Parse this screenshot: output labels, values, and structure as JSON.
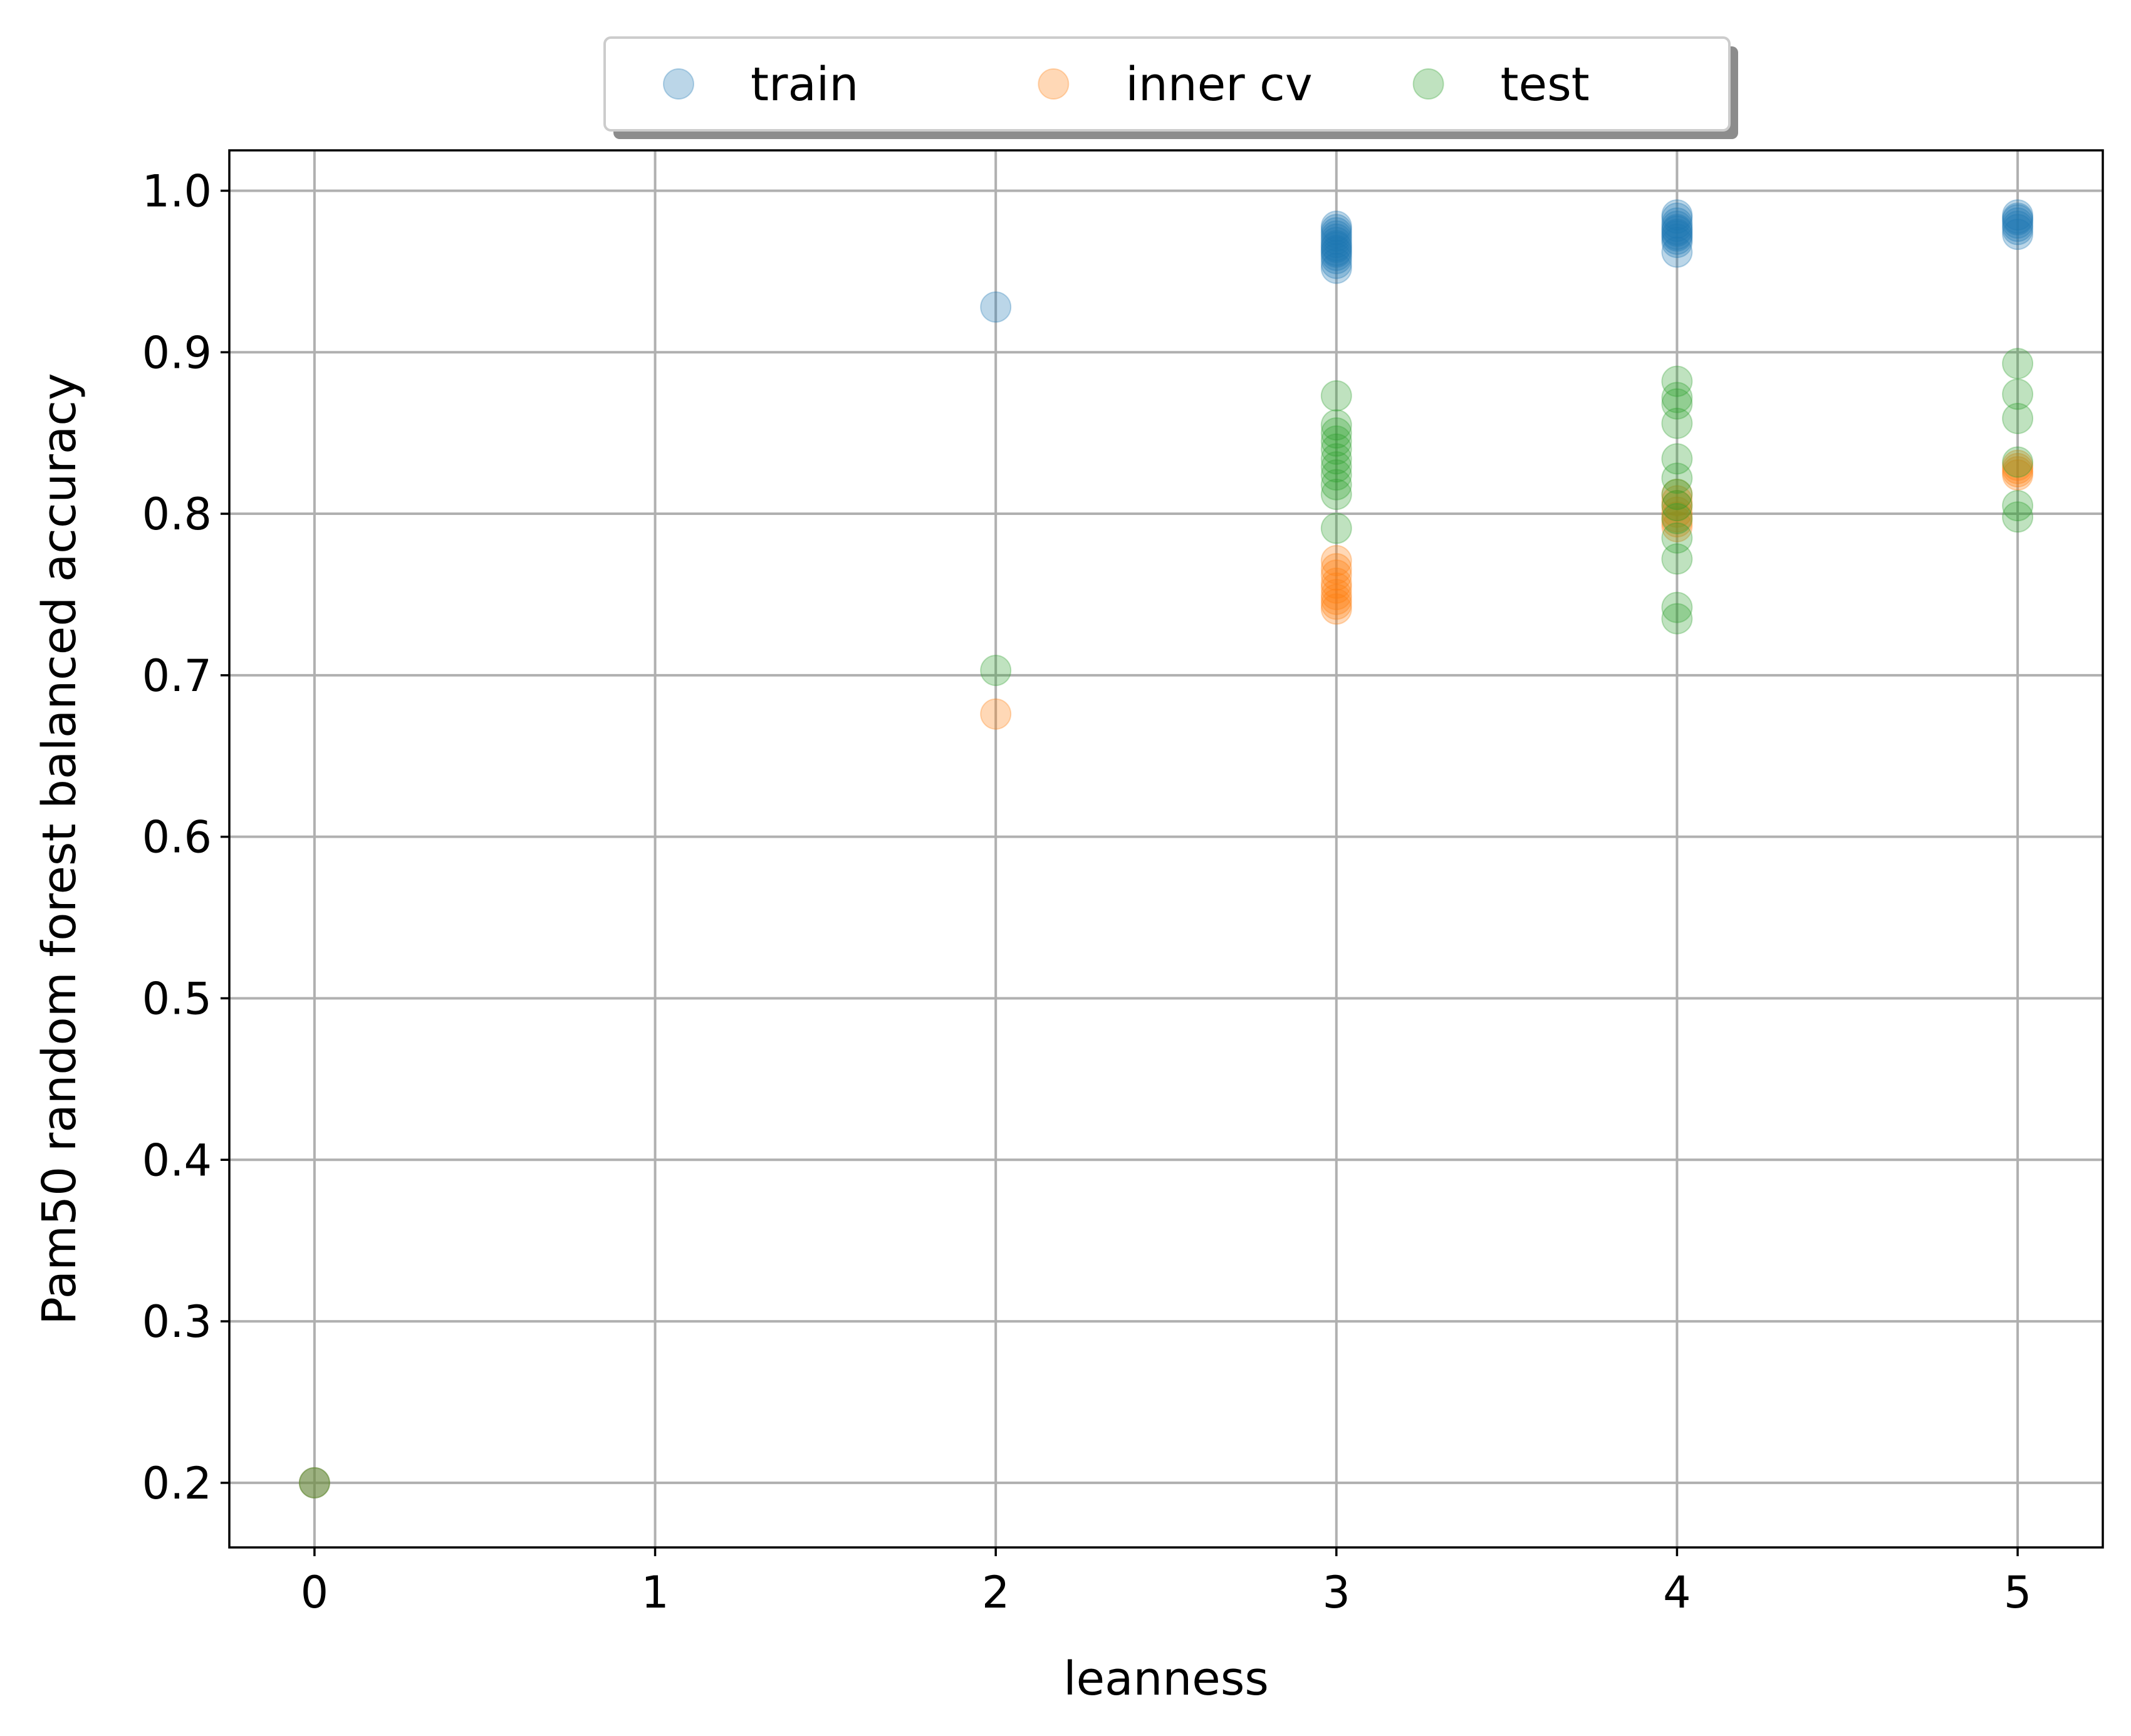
{
  "chart_data": {
    "type": "scatter",
    "title": "",
    "xlabel": "leanness",
    "ylabel": "Pam50 random forest balanced accuracy",
    "xlim": [
      -0.25,
      5.25
    ],
    "ylim": [
      0.16,
      1.025
    ],
    "xticks": [
      0,
      1,
      2,
      3,
      4,
      5
    ],
    "yticks": [
      0.2,
      0.3,
      0.4,
      0.5,
      0.6,
      0.7,
      0.8,
      0.9,
      1.0
    ],
    "xtick_labels": [
      "0",
      "1",
      "2",
      "3",
      "4",
      "5"
    ],
    "ytick_labels": [
      "0.2",
      "0.3",
      "0.4",
      "0.5",
      "0.6",
      "0.7",
      "0.8",
      "0.9",
      "1.0"
    ],
    "grid": true,
    "legend": {
      "position": "top-center",
      "columns": 3,
      "shadow": true
    },
    "marker_alpha": 0.3,
    "series": [
      {
        "name": "train",
        "color": "#1f77b4",
        "points": [
          [
            0,
            0.2
          ],
          [
            2,
            0.928
          ],
          [
            3,
            0.952
          ],
          [
            3,
            0.955
          ],
          [
            3,
            0.958
          ],
          [
            3,
            0.96
          ],
          [
            3,
            0.962
          ],
          [
            3,
            0.963
          ],
          [
            3,
            0.965
          ],
          [
            3,
            0.966
          ],
          [
            3,
            0.968
          ],
          [
            3,
            0.97
          ],
          [
            3,
            0.972
          ],
          [
            3,
            0.974
          ],
          [
            3,
            0.976
          ],
          [
            3,
            0.978
          ],
          [
            4,
            0.962
          ],
          [
            4,
            0.968
          ],
          [
            4,
            0.97
          ],
          [
            4,
            0.972
          ],
          [
            4,
            0.973
          ],
          [
            4,
            0.975
          ],
          [
            4,
            0.976
          ],
          [
            4,
            0.978
          ],
          [
            4,
            0.98
          ],
          [
            4,
            0.983
          ],
          [
            4,
            0.985
          ],
          [
            5,
            0.973
          ],
          [
            5,
            0.976
          ],
          [
            5,
            0.978
          ],
          [
            5,
            0.98
          ],
          [
            5,
            0.982
          ],
          [
            5,
            0.983
          ],
          [
            5,
            0.985
          ]
        ]
      },
      {
        "name": "inner cv",
        "color": "#ff7f0e",
        "points": [
          [
            0,
            0.2
          ],
          [
            2,
            0.676
          ],
          [
            3,
            0.741
          ],
          [
            3,
            0.744
          ],
          [
            3,
            0.747
          ],
          [
            3,
            0.75
          ],
          [
            3,
            0.754
          ],
          [
            3,
            0.757
          ],
          [
            3,
            0.762
          ],
          [
            3,
            0.766
          ],
          [
            3,
            0.771
          ],
          [
            4,
            0.792
          ],
          [
            4,
            0.795
          ],
          [
            4,
            0.798
          ],
          [
            4,
            0.801
          ],
          [
            4,
            0.805
          ],
          [
            4,
            0.808
          ],
          [
            4,
            0.812
          ],
          [
            5,
            0.824
          ],
          [
            5,
            0.826
          ],
          [
            5,
            0.828
          ],
          [
            5,
            0.83
          ]
        ]
      },
      {
        "name": "test",
        "color": "#2ca02c",
        "points": [
          [
            0,
            0.2
          ],
          [
            2,
            0.703
          ],
          [
            3,
            0.791
          ],
          [
            3,
            0.812
          ],
          [
            3,
            0.818
          ],
          [
            3,
            0.824
          ],
          [
            3,
            0.829
          ],
          [
            3,
            0.834
          ],
          [
            3,
            0.84
          ],
          [
            3,
            0.845
          ],
          [
            3,
            0.85
          ],
          [
            3,
            0.855
          ],
          [
            3,
            0.873
          ],
          [
            4,
            0.735
          ],
          [
            4,
            0.742
          ],
          [
            4,
            0.772
          ],
          [
            4,
            0.785
          ],
          [
            4,
            0.797
          ],
          [
            4,
            0.805
          ],
          [
            4,
            0.812
          ],
          [
            4,
            0.822
          ],
          [
            4,
            0.834
          ],
          [
            4,
            0.856
          ],
          [
            4,
            0.868
          ],
          [
            4,
            0.872
          ],
          [
            4,
            0.882
          ],
          [
            5,
            0.798
          ],
          [
            5,
            0.805
          ],
          [
            5,
            0.832
          ],
          [
            5,
            0.859
          ],
          [
            5,
            0.874
          ],
          [
            5,
            0.893
          ]
        ]
      }
    ]
  }
}
